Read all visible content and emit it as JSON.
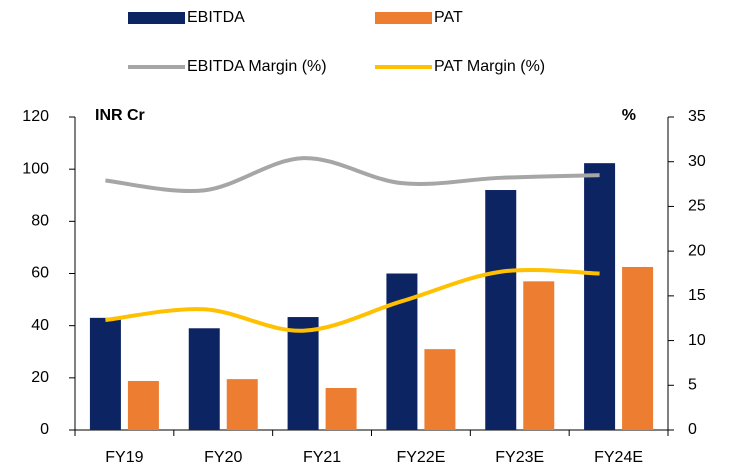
{
  "chart_data": {
    "type": "bar",
    "categories": [
      "FY19",
      "FY20",
      "FY21",
      "FY22E",
      "FY23E",
      "FY24E"
    ],
    "series": [
      {
        "name": "EBITDA",
        "type": "bar",
        "color": "#0d2463",
        "values": [
          43,
          39,
          43.3,
          60,
          92,
          102.3
        ]
      },
      {
        "name": "PAT",
        "type": "bar",
        "color": "#ed7d31",
        "values": [
          18.8,
          19.5,
          16.1,
          31,
          57,
          62.5
        ]
      },
      {
        "name": "EBITDA Margin (%)",
        "type": "line",
        "axis": "y2",
        "color": "#a6a6a6",
        "values": [
          27.9,
          26.8,
          30.4,
          27.6,
          28.2,
          28.5
        ]
      },
      {
        "name": "PAT Margin (%)",
        "type": "line",
        "axis": "y2",
        "color": "#ffc000",
        "values": [
          12.3,
          13.5,
          11.1,
          14.4,
          17.7,
          17.5
        ]
      }
    ],
    "ylabel": "INR Cr",
    "y2label": "%",
    "ylim": [
      0,
      120
    ],
    "yticks": [
      0,
      20,
      40,
      60,
      80,
      100,
      120
    ],
    "y2lim": [
      0,
      35
    ],
    "y2ticks": [
      0,
      5,
      10,
      15,
      20,
      25,
      30,
      35
    ]
  }
}
